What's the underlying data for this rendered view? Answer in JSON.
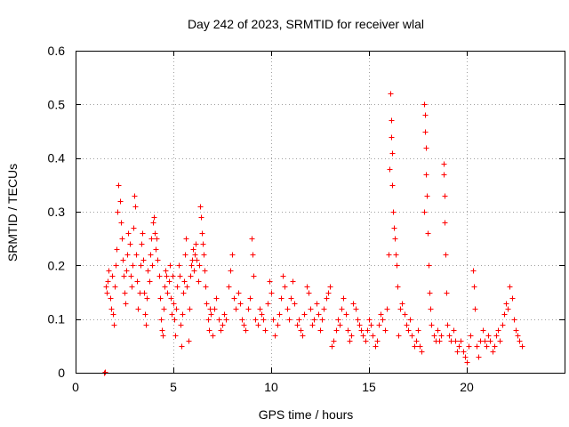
{
  "chart_data": {
    "type": "scatter",
    "title": "Day 242 of 2023, SRMTID for receiver wlal",
    "xlabel": "GPS time / hours",
    "ylabel": "SRMTID / TECUs",
    "xlim": [
      0,
      25
    ],
    "ylim": [
      0,
      0.6
    ],
    "x_ticks": [
      0,
      5,
      10,
      15,
      20
    ],
    "x_tick_labels": [
      "0",
      "5",
      "10",
      "15",
      "20"
    ],
    "y_ticks": [
      0,
      0.1,
      0.2,
      0.3,
      0.4,
      0.5,
      0.6
    ],
    "y_tick_labels": [
      "0",
      "0.1",
      "0.2",
      "0.3",
      "0.4",
      "0.5",
      "0.6"
    ],
    "grid": true,
    "marker": "+",
    "series_color": "#ff0000",
    "series": [
      {
        "name": "SRMTID",
        "points": [
          [
            1.45,
            0.0
          ],
          [
            1.5,
            0.001
          ],
          [
            1.55,
            0.16
          ],
          [
            1.6,
            0.15
          ],
          [
            1.65,
            0.17
          ],
          [
            1.7,
            0.19
          ],
          [
            1.75,
            0.14
          ],
          [
            1.8,
            0.12
          ],
          [
            1.85,
            0.18
          ],
          [
            1.9,
            0.11
          ],
          [
            1.95,
            0.09
          ],
          [
            2.0,
            0.16
          ],
          [
            2.05,
            0.2
          ],
          [
            2.1,
            0.23
          ],
          [
            2.15,
            0.3
          ],
          [
            2.2,
            0.35
          ],
          [
            2.25,
            0.32
          ],
          [
            2.3,
            0.28
          ],
          [
            2.35,
            0.25
          ],
          [
            2.4,
            0.21
          ],
          [
            2.45,
            0.18
          ],
          [
            2.5,
            0.15
          ],
          [
            2.55,
            0.13
          ],
          [
            2.6,
            0.19
          ],
          [
            2.65,
            0.22
          ],
          [
            2.7,
            0.26
          ],
          [
            2.75,
            0.24
          ],
          [
            2.8,
            0.18
          ],
          [
            2.85,
            0.16
          ],
          [
            2.9,
            0.2
          ],
          [
            2.95,
            0.27
          ],
          [
            3.0,
            0.33
          ],
          [
            3.05,
            0.31
          ],
          [
            3.1,
            0.22
          ],
          [
            3.15,
            0.17
          ],
          [
            3.2,
            0.12
          ],
          [
            3.25,
            0.15
          ],
          [
            3.3,
            0.2
          ],
          [
            3.35,
            0.24
          ],
          [
            3.4,
            0.26
          ],
          [
            3.45,
            0.21
          ],
          [
            3.5,
            0.15
          ],
          [
            3.55,
            0.11
          ],
          [
            3.6,
            0.09
          ],
          [
            3.65,
            0.14
          ],
          [
            3.7,
            0.19
          ],
          [
            3.75,
            0.17
          ],
          [
            3.8,
            0.22
          ],
          [
            3.85,
            0.25
          ],
          [
            3.9,
            0.2
          ],
          [
            3.95,
            0.28
          ],
          [
            4.0,
            0.29
          ],
          [
            4.05,
            0.26
          ],
          [
            4.1,
            0.23
          ],
          [
            4.15,
            0.25
          ],
          [
            4.2,
            0.21
          ],
          [
            4.25,
            0.18
          ],
          [
            4.3,
            0.14
          ],
          [
            4.35,
            0.1
          ],
          [
            4.4,
            0.08
          ],
          [
            4.45,
            0.07
          ],
          [
            4.5,
            0.12
          ],
          [
            4.55,
            0.16
          ],
          [
            4.6,
            0.19
          ],
          [
            4.65,
            0.18
          ],
          [
            4.7,
            0.15
          ],
          [
            4.75,
            0.17
          ],
          [
            4.8,
            0.2
          ],
          [
            4.85,
            0.14
          ],
          [
            4.9,
            0.11
          ],
          [
            4.95,
            0.18
          ],
          [
            5.0,
            0.13
          ],
          [
            5.05,
            0.1
          ],
          [
            5.1,
            0.07
          ],
          [
            5.15,
            0.12
          ],
          [
            5.2,
            0.16
          ],
          [
            5.25,
            0.2
          ],
          [
            5.3,
            0.18
          ],
          [
            5.35,
            0.09
          ],
          [
            5.4,
            0.05
          ],
          [
            5.45,
            0.11
          ],
          [
            5.5,
            0.15
          ],
          [
            5.55,
            0.17
          ],
          [
            5.6,
            0.22
          ],
          [
            5.65,
            0.25
          ],
          [
            5.7,
            0.16
          ],
          [
            5.75,
            0.06
          ],
          [
            5.8,
            0.12
          ],
          [
            5.85,
            0.18
          ],
          [
            5.9,
            0.2
          ],
          [
            5.95,
            0.21
          ],
          [
            6.0,
            0.23
          ],
          [
            6.05,
            0.19
          ],
          [
            6.1,
            0.22
          ],
          [
            6.15,
            0.24
          ],
          [
            6.2,
            0.21
          ],
          [
            6.25,
            0.17
          ],
          [
            6.3,
            0.2
          ],
          [
            6.35,
            0.31
          ],
          [
            6.4,
            0.29
          ],
          [
            6.45,
            0.26
          ],
          [
            6.5,
            0.24
          ],
          [
            6.55,
            0.22
          ],
          [
            6.6,
            0.19
          ],
          [
            6.65,
            0.16
          ],
          [
            6.7,
            0.13
          ],
          [
            6.75,
            0.1
          ],
          [
            6.8,
            0.08
          ],
          [
            6.85,
            0.12
          ],
          [
            6.9,
            0.11
          ],
          [
            7.0,
            0.07
          ],
          [
            7.1,
            0.12
          ],
          [
            7.2,
            0.14
          ],
          [
            7.3,
            0.1
          ],
          [
            7.4,
            0.08
          ],
          [
            7.5,
            0.09
          ],
          [
            7.6,
            0.11
          ],
          [
            7.7,
            0.1
          ],
          [
            7.8,
            0.16
          ],
          [
            7.9,
            0.19
          ],
          [
            8.0,
            0.22
          ],
          [
            8.1,
            0.14
          ],
          [
            8.2,
            0.12
          ],
          [
            8.3,
            0.15
          ],
          [
            8.4,
            0.13
          ],
          [
            8.5,
            0.1
          ],
          [
            8.6,
            0.09
          ],
          [
            8.7,
            0.08
          ],
          [
            8.8,
            0.12
          ],
          [
            8.9,
            0.14
          ],
          [
            9.0,
            0.25
          ],
          [
            9.05,
            0.22
          ],
          [
            9.1,
            0.18
          ],
          [
            9.2,
            0.1
          ],
          [
            9.3,
            0.09
          ],
          [
            9.4,
            0.12
          ],
          [
            9.5,
            0.11
          ],
          [
            9.6,
            0.1
          ],
          [
            9.7,
            0.08
          ],
          [
            9.8,
            0.13
          ],
          [
            9.9,
            0.17
          ],
          [
            10.0,
            0.15
          ],
          [
            10.1,
            0.1
          ],
          [
            10.2,
            0.07
          ],
          [
            10.3,
            0.09
          ],
          [
            10.4,
            0.11
          ],
          [
            10.5,
            0.14
          ],
          [
            10.6,
            0.18
          ],
          [
            10.7,
            0.16
          ],
          [
            10.8,
            0.12
          ],
          [
            10.9,
            0.1
          ],
          [
            11.0,
            0.14
          ],
          [
            11.1,
            0.17
          ],
          [
            11.2,
            0.13
          ],
          [
            11.3,
            0.09
          ],
          [
            11.4,
            0.1
          ],
          [
            11.5,
            0.08
          ],
          [
            11.6,
            0.07
          ],
          [
            11.7,
            0.11
          ],
          [
            11.8,
            0.16
          ],
          [
            11.9,
            0.15
          ],
          [
            12.0,
            0.12
          ],
          [
            12.1,
            0.09
          ],
          [
            12.2,
            0.1
          ],
          [
            12.3,
            0.13
          ],
          [
            12.4,
            0.11
          ],
          [
            12.5,
            0.08
          ],
          [
            12.6,
            0.1
          ],
          [
            12.7,
            0.12
          ],
          [
            12.8,
            0.14
          ],
          [
            12.9,
            0.15
          ],
          [
            13.0,
            0.16
          ],
          [
            13.1,
            0.05
          ],
          [
            13.2,
            0.06
          ],
          [
            13.3,
            0.08
          ],
          [
            13.4,
            0.1
          ],
          [
            13.5,
            0.09
          ],
          [
            13.6,
            0.12
          ],
          [
            13.7,
            0.14
          ],
          [
            13.8,
            0.11
          ],
          [
            13.9,
            0.08
          ],
          [
            14.0,
            0.06
          ],
          [
            14.1,
            0.07
          ],
          [
            14.2,
            0.13
          ],
          [
            14.3,
            0.12
          ],
          [
            14.4,
            0.1
          ],
          [
            14.5,
            0.09
          ],
          [
            14.6,
            0.08
          ],
          [
            14.7,
            0.07
          ],
          [
            14.8,
            0.06
          ],
          [
            14.9,
            0.08
          ],
          [
            15.0,
            0.1
          ],
          [
            15.1,
            0.09
          ],
          [
            15.2,
            0.07
          ],
          [
            15.3,
            0.05
          ],
          [
            15.4,
            0.06
          ],
          [
            15.5,
            0.09
          ],
          [
            15.6,
            0.11
          ],
          [
            15.7,
            0.1
          ],
          [
            15.8,
            0.08
          ],
          [
            15.9,
            0.12
          ],
          [
            16.0,
            0.22
          ],
          [
            16.05,
            0.38
          ],
          [
            16.1,
            0.52
          ],
          [
            16.12,
            0.47
          ],
          [
            16.15,
            0.44
          ],
          [
            16.18,
            0.41
          ],
          [
            16.2,
            0.35
          ],
          [
            16.22,
            0.3
          ],
          [
            16.25,
            0.27
          ],
          [
            16.3,
            0.25
          ],
          [
            16.35,
            0.22
          ],
          [
            16.4,
            0.2
          ],
          [
            16.45,
            0.16
          ],
          [
            16.5,
            0.07
          ],
          [
            16.6,
            0.12
          ],
          [
            16.7,
            0.13
          ],
          [
            16.8,
            0.11
          ],
          [
            16.9,
            0.09
          ],
          [
            17.0,
            0.08
          ],
          [
            17.1,
            0.1
          ],
          [
            17.2,
            0.07
          ],
          [
            17.3,
            0.05
          ],
          [
            17.4,
            0.06
          ],
          [
            17.5,
            0.08
          ],
          [
            17.6,
            0.05
          ],
          [
            17.7,
            0.04
          ],
          [
            17.8,
            0.3
          ],
          [
            17.82,
            0.5
          ],
          [
            17.85,
            0.48
          ],
          [
            17.88,
            0.45
          ],
          [
            17.9,
            0.42
          ],
          [
            17.92,
            0.37
          ],
          [
            17.95,
            0.33
          ],
          [
            18.0,
            0.26
          ],
          [
            18.05,
            0.2
          ],
          [
            18.1,
            0.15
          ],
          [
            18.15,
            0.12
          ],
          [
            18.2,
            0.09
          ],
          [
            18.3,
            0.07
          ],
          [
            18.4,
            0.06
          ],
          [
            18.5,
            0.08
          ],
          [
            18.6,
            0.06
          ],
          [
            18.7,
            0.07
          ],
          [
            18.8,
            0.39
          ],
          [
            18.82,
            0.37
          ],
          [
            18.85,
            0.33
          ],
          [
            18.88,
            0.28
          ],
          [
            18.9,
            0.22
          ],
          [
            18.95,
            0.15
          ],
          [
            19.0,
            0.09
          ],
          [
            19.1,
            0.07
          ],
          [
            19.2,
            0.06
          ],
          [
            19.3,
            0.08
          ],
          [
            19.4,
            0.06
          ],
          [
            19.5,
            0.04
          ],
          [
            19.6,
            0.05
          ],
          [
            19.7,
            0.06
          ],
          [
            19.8,
            0.04
          ],
          [
            19.9,
            0.03
          ],
          [
            20.0,
            0.02
          ],
          [
            20.1,
            0.05
          ],
          [
            20.2,
            0.07
          ],
          [
            20.3,
            0.19
          ],
          [
            20.35,
            0.16
          ],
          [
            20.4,
            0.12
          ],
          [
            20.5,
            0.05
          ],
          [
            20.6,
            0.03
          ],
          [
            20.7,
            0.06
          ],
          [
            20.8,
            0.08
          ],
          [
            20.9,
            0.06
          ],
          [
            21.0,
            0.05
          ],
          [
            21.1,
            0.07
          ],
          [
            21.2,
            0.06
          ],
          [
            21.3,
            0.04
          ],
          [
            21.4,
            0.05
          ],
          [
            21.5,
            0.07
          ],
          [
            21.6,
            0.08
          ],
          [
            21.7,
            0.06
          ],
          [
            21.8,
            0.09
          ],
          [
            21.9,
            0.11
          ],
          [
            22.0,
            0.13
          ],
          [
            22.1,
            0.12
          ],
          [
            22.2,
            0.16
          ],
          [
            22.3,
            0.14
          ],
          [
            22.4,
            0.1
          ],
          [
            22.5,
            0.08
          ],
          [
            22.6,
            0.07
          ],
          [
            22.7,
            0.06
          ],
          [
            22.8,
            0.05
          ]
        ]
      }
    ]
  }
}
